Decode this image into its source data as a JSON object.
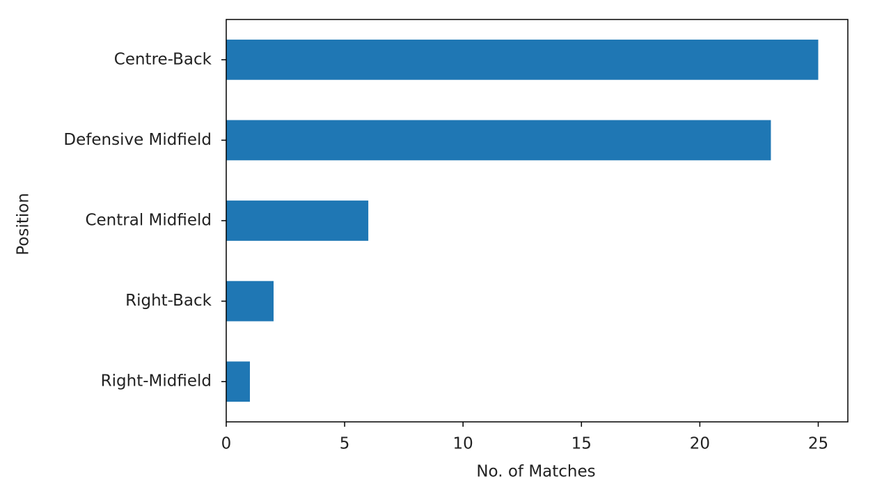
{
  "chart_data": {
    "type": "barh",
    "categories": [
      "Centre-Back",
      "Defensive Midfield",
      "Central Midfield",
      "Right-Back",
      "Right-Midfield"
    ],
    "values": [
      25,
      23,
      6,
      2,
      1
    ],
    "color": "#1f77b4",
    "xlabel": "No. of Matches",
    "ylabel": "Position",
    "xlim": [
      0,
      26.25
    ],
    "xticks": [
      0,
      5,
      10,
      15,
      20,
      25
    ],
    "grid": false
  }
}
